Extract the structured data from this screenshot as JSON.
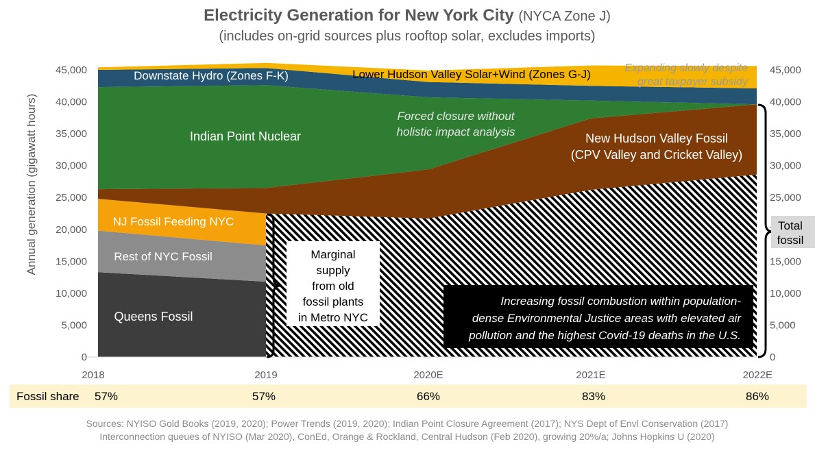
{
  "chart_data": {
    "type": "area",
    "title": "Electricity Generation for New York City",
    "title_suffix": "(NYCA Zone J)",
    "subtitle": "(includes on-grid sources plus rooftop solar, excludes imports)",
    "ylabel": "Annual generation (gigawatt hours)",
    "ylim": [
      0,
      45000
    ],
    "yticks": [
      0,
      5000,
      10000,
      15000,
      20000,
      25000,
      30000,
      35000,
      40000,
      45000
    ],
    "ytick_labels": [
      "0",
      "5,000",
      "10,000",
      "15,000",
      "20,000",
      "25,000",
      "30,000",
      "35,000",
      "40,000",
      "45,000"
    ],
    "categories": [
      "2018",
      "2019",
      "2020E",
      "2021E",
      "2022E"
    ],
    "series": [
      {
        "name": "Queens Fossil",
        "color": "#3d3d3d",
        "values": [
          13300,
          11800,
          null,
          null,
          null
        ]
      },
      {
        "name": "Rest of NYC Fossil",
        "color": "#8c8c8c",
        "values": [
          6500,
          5700,
          null,
          null,
          null
        ]
      },
      {
        "name": "NJ Fossil Feeding NYC",
        "color": "#f5a20a",
        "values": [
          5000,
          5000,
          null,
          null,
          null
        ]
      },
      {
        "name": "Total NYC Fossil (old plants)",
        "color": "#000000",
        "pattern": "diagonal-hatch",
        "values": [
          null,
          22500,
          21700,
          26200,
          28600
        ]
      },
      {
        "name": "New Hudson Valley Fossil (CPV Valley and Cricket Valley)",
        "color": "#7f3b07",
        "values": [
          1500,
          4000,
          7700,
          11200,
          11000
        ]
      },
      {
        "name": "Indian Point Nuclear",
        "color": "#2e7d32",
        "values": [
          16000,
          16100,
          11300,
          2800,
          0
        ]
      },
      {
        "name": "Downstate Hydro (Zones F-K)",
        "color": "#245471",
        "values": [
          2700,
          2700,
          2400,
          2300,
          2500
        ]
      },
      {
        "name": "Lower Hudson Valley Solar+Wind (Zones G-J)",
        "color": "#f5b400",
        "values": [
          400,
          800,
          1800,
          3200,
          3500
        ]
      }
    ],
    "area_labels": {
      "hydro": "Downstate Hydro (Zones F-K)",
      "solar": "Lower Hudson Valley Solar+Wind (Zones G-J)",
      "nuclear": "Indian Point Nuclear",
      "new_fossil_1": "New Hudson Valley Fossil",
      "new_fossil_2": "(CPV Valley and Cricket Valley)",
      "nj": "NJ Fossil Feeding NYC",
      "rest": "Rest of NYC Fossil",
      "queens": "Queens Fossil"
    },
    "annotations": {
      "expanding_1": "Expanding slowly despite",
      "expanding_2": "great taxpayer subsidy",
      "forced_1": "Forced closure without",
      "forced_2": "holistic impact analysis",
      "marginal": [
        "Marginal",
        "supply",
        "from old",
        "fossil plants",
        "in Metro NYC"
      ],
      "total_fossil": [
        "Total",
        "fossil"
      ],
      "ej": [
        "Increasing fossil combustion within population-",
        "dense Environmental Justice areas with elevated air",
        "pollution and the highest Covid-19 deaths in the U.S."
      ]
    },
    "fossil_share_label": "Fossil share",
    "fossil_share": [
      "57%",
      "57%",
      "66%",
      "83%",
      "86%"
    ],
    "sources": [
      "Sources: NYISO Gold Books (2019, 2020); Power Trends (2019, 2020); Indian Point Closure Agreement (2017); NYS Dept of Envl Conservation (2017)",
      "Interconnection queues of NYISO (Mar 2020), ConEd, Orange & Rockland, Central Hudson (Feb 2020), growing 20%/a; Johns Hopkins U (2020)"
    ]
  }
}
